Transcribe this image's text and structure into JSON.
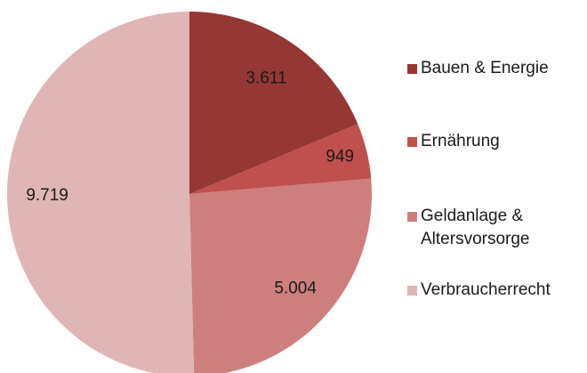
{
  "chart_data": {
    "type": "pie",
    "categories": [
      "Bauen & Energie",
      "Ernährung",
      "Geldanlage & Altersvorsorge",
      "Verbraucherrecht"
    ],
    "values": [
      3611,
      949,
      5004,
      9719
    ],
    "value_labels": [
      "3.611",
      "949",
      "5.004",
      "9.719"
    ],
    "colors": [
      "#953735",
      "#c0504d",
      "#cd7f7e",
      "#dfb6b5"
    ],
    "legend": "right"
  }
}
